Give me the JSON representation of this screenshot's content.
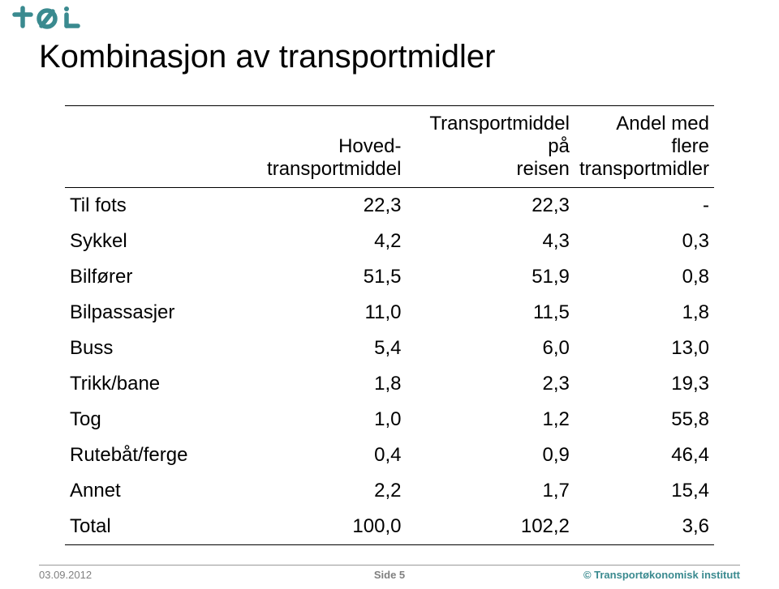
{
  "logo": {
    "text_color": "#3a8a8f",
    "letters": "tøi"
  },
  "title": "Kombinasjon av transportmidler",
  "table": {
    "columns": [
      "",
      "Hoved-\ntransportmiddel",
      "Transportmiddel på\nreisen",
      "Andel med flere\ntransportmidler"
    ],
    "rows": [
      [
        "Til fots",
        "22,3",
        "22,3",
        "-"
      ],
      [
        "Sykkel",
        "4,2",
        "4,3",
        "0,3"
      ],
      [
        "Bilfører",
        "51,5",
        "51,9",
        "0,8"
      ],
      [
        "Bilpassasjer",
        "11,0",
        "11,5",
        "1,8"
      ],
      [
        "Buss",
        "5,4",
        "6,0",
        "13,0"
      ],
      [
        "Trikk/bane",
        "1,8",
        "2,3",
        "19,3"
      ],
      [
        "Tog",
        "1,0",
        "1,2",
        "55,8"
      ],
      [
        "Rutebåt/ferge",
        "0,4",
        "0,9",
        "46,4"
      ],
      [
        "Annet",
        "2,2",
        "1,7",
        "15,4"
      ],
      [
        "Total",
        "100,0",
        "102,2",
        "3,6"
      ]
    ]
  },
  "footer": {
    "date": "03.09.2012",
    "page": "Side 5",
    "copyright": "© Transportøkonomisk institutt"
  }
}
